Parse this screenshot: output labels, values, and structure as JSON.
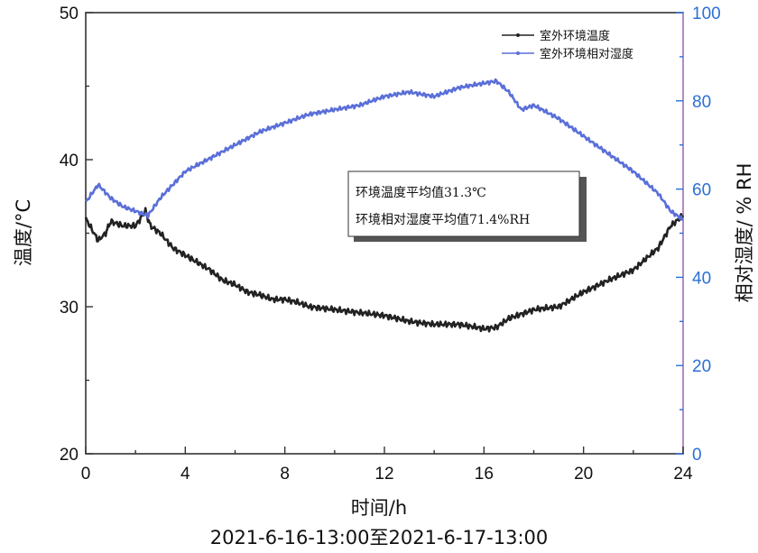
{
  "chart_data": {
    "type": "line",
    "xlabel": "时间/h",
    "subtitle": "2021-6-16-13:00至2021-6-17-13:00",
    "ylabel_left": "温度/°C",
    "ylabel_right": "相对湿度/ % RH",
    "xlim": [
      0,
      24
    ],
    "ylim_left": [
      20,
      50
    ],
    "ylim_right": [
      0,
      100
    ],
    "x_ticks": [
      0,
      4,
      8,
      12,
      16,
      20,
      24
    ],
    "y_ticks_left": [
      20,
      30,
      40,
      50
    ],
    "y_ticks_right": [
      0,
      20,
      40,
      60,
      80,
      100
    ],
    "legend_position": "top-right",
    "annotations": [
      "环境温度平均值31.3℃",
      "环境相对湿度平均值71.4%RH"
    ],
    "series": [
      {
        "name": "室外环境温度",
        "axis": "left",
        "color": "#222222",
        "x": [
          0,
          0.5,
          0.8,
          1,
          1.5,
          2,
          2.4,
          2.6,
          3,
          3.5,
          4,
          4.5,
          5,
          5.5,
          6,
          6.5,
          7,
          7.5,
          8,
          8.5,
          9,
          10,
          11,
          12,
          13,
          14,
          15,
          16,
          16.5,
          17,
          17.5,
          18,
          19,
          20,
          21,
          22,
          23,
          23.5,
          24
        ],
        "values": [
          36,
          34.5,
          35,
          35.8,
          35.5,
          35.5,
          36.5,
          35.5,
          35,
          34,
          33.5,
          33,
          32.5,
          31.8,
          31.5,
          31,
          30.8,
          30.5,
          30.5,
          30.3,
          30,
          29.8,
          29.6,
          29.4,
          29,
          28.8,
          28.8,
          28.5,
          28.6,
          29.2,
          29.5,
          29.8,
          30,
          31,
          31.8,
          32.5,
          34,
          35.5,
          36.2
        ]
      },
      {
        "name": "室外环境相对湿度",
        "axis": "right",
        "color": "#5a6fd8",
        "x": [
          0,
          0.5,
          1,
          1.5,
          2,
          2.5,
          3,
          3.5,
          4,
          5,
          6,
          7,
          8,
          9,
          10,
          11,
          12,
          13,
          14,
          15,
          16,
          16.5,
          17,
          17.5,
          18,
          19,
          20,
          21,
          22,
          23,
          23.5,
          24
        ],
        "values": [
          57,
          61,
          58,
          56,
          55,
          54,
          58,
          61,
          64,
          67,
          70,
          73,
          75,
          77,
          78,
          79,
          81,
          82,
          81,
          83,
          84,
          84.5,
          82,
          78,
          79,
          76,
          72,
          68,
          64,
          59,
          55,
          53
        ]
      }
    ]
  }
}
